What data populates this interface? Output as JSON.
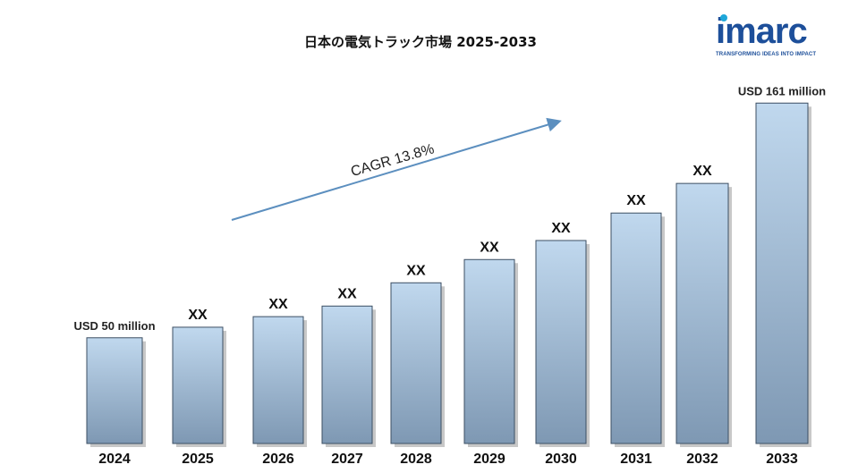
{
  "chart_data": {
    "type": "bar",
    "title": "日本の電気トラック市場  2025-2033",
    "categories": [
      "2024",
      "2025",
      "2026",
      "2027",
      "2028",
      "2029",
      "2030",
      "2031",
      "2032",
      "2033"
    ],
    "values": [
      50,
      55,
      60,
      65,
      76,
      87,
      96,
      109,
      123,
      161
    ],
    "value_labels": [
      "USD 50 million",
      "XX",
      "XX",
      "XX",
      "XX",
      "XX",
      "XX",
      "XX",
      "XX",
      "USD  161 million"
    ],
    "annotation": "CAGR 13.8%",
    "ylim": [
      0,
      170
    ],
    "grid": false,
    "legend": "none",
    "colors": {
      "bar_top": "#c0d8ee",
      "bar_bottom": "#7e98b3",
      "arrow": "#5c8fbf"
    }
  },
  "logo": {
    "word": "imarc",
    "tagline": "TRANSFORMING IDEAS INTO IMPACT",
    "colors": {
      "primary": "#1d4f9a",
      "accent": "#1ea7d9"
    }
  }
}
